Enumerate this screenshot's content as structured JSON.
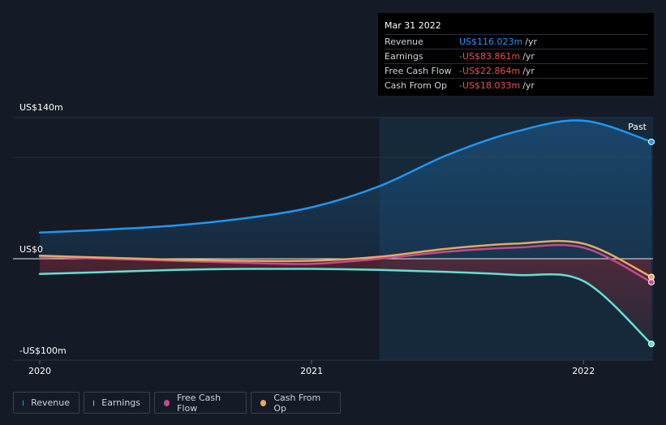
{
  "chart_data": {
    "type": "line",
    "y_axis": {
      "top_label": "US$140m",
      "zero_label": "US$0",
      "bottom_label": "-US$100m",
      "ylim": [
        -100,
        140
      ]
    },
    "x_ticks": [
      {
        "label": "2020",
        "t": 2020.0
      },
      {
        "label": "2021",
        "t": 2021.0
      },
      {
        "label": "2022",
        "t": 2022.0
      }
    ],
    "past_label": "Past",
    "past_start": 2021.25,
    "series": [
      {
        "name": "Revenue",
        "color": "#2196f3",
        "points": [
          [
            2020.0,
            26
          ],
          [
            2020.25,
            29
          ],
          [
            2020.5,
            33
          ],
          [
            2020.75,
            40
          ],
          [
            2021.0,
            51
          ],
          [
            2021.25,
            72
          ],
          [
            2021.5,
            103
          ],
          [
            2021.75,
            126
          ],
          [
            2022.0,
            137
          ],
          [
            2022.25,
            116
          ]
        ]
      },
      {
        "name": "Earnings",
        "color": "#5ee2d5",
        "points": [
          [
            2020.0,
            -15
          ],
          [
            2020.25,
            -13
          ],
          [
            2020.5,
            -11
          ],
          [
            2020.75,
            -10
          ],
          [
            2021.0,
            -10
          ],
          [
            2021.25,
            -11
          ],
          [
            2021.5,
            -13
          ],
          [
            2021.75,
            -16
          ],
          [
            2022.0,
            -22
          ],
          [
            2022.25,
            -84
          ]
        ]
      },
      {
        "name": "Free Cash Flow",
        "color": "#c64a8c",
        "points": [
          [
            2020.0,
            2
          ],
          [
            2020.25,
            0
          ],
          [
            2020.5,
            -2
          ],
          [
            2020.75,
            -4
          ],
          [
            2021.0,
            -5
          ],
          [
            2021.25,
            0
          ],
          [
            2021.5,
            7
          ],
          [
            2021.75,
            11
          ],
          [
            2022.0,
            11
          ],
          [
            2022.25,
            -23
          ]
        ]
      },
      {
        "name": "Cash From Op",
        "color": "#e8a861",
        "points": [
          [
            2020.0,
            3
          ],
          [
            2020.25,
            1
          ],
          [
            2020.5,
            -1
          ],
          [
            2020.75,
            -2
          ],
          [
            2021.0,
            -2
          ],
          [
            2021.25,
            2
          ],
          [
            2021.5,
            10
          ],
          [
            2021.75,
            15
          ],
          [
            2022.0,
            15
          ],
          [
            2022.25,
            -18
          ]
        ]
      }
    ]
  },
  "tooltip": {
    "date": "Mar 31 2022",
    "unit": "/yr",
    "rows": [
      {
        "label": "Revenue",
        "value": "US$116.023m"
      },
      {
        "label": "Earnings",
        "value": "-US$83.861m"
      },
      {
        "label": "Free Cash Flow",
        "value": "-US$22.864m"
      },
      {
        "label": "Cash From Op",
        "value": "-US$18.033m"
      }
    ]
  },
  "legend": [
    {
      "label": "Revenue",
      "color": "#2196f3"
    },
    {
      "label": "Earnings",
      "color": "#5ee2d5"
    },
    {
      "label": "Free Cash Flow",
      "color": "#c64a8c"
    },
    {
      "label": "Cash From Op",
      "color": "#e8a861"
    }
  ]
}
